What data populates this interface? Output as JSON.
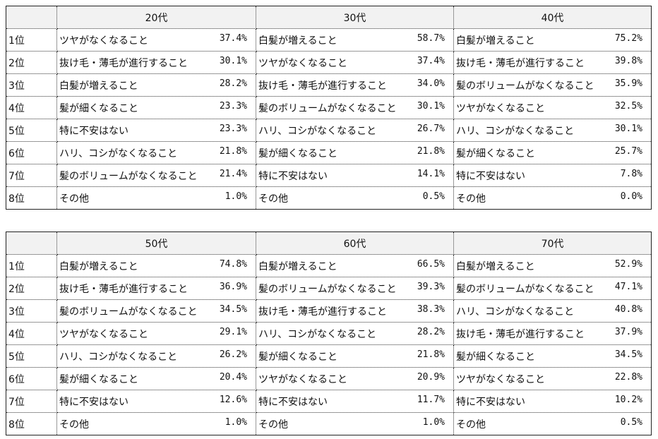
{
  "tables": [
    {
      "groups": [
        {
          "header": "20代",
          "rows": [
            [
              "ツヤがなくなること",
              "37.4%"
            ],
            [
              "抜け毛・薄毛が進行すること",
              "30.1%"
            ],
            [
              "白髪が増えること",
              "28.2%"
            ],
            [
              "髪が細くなること",
              "23.3%"
            ],
            [
              "特に不安はない",
              "23.3%"
            ],
            [
              "ハリ、コシがなくなること",
              "21.8%"
            ],
            [
              "髪のボリュームがなくなること",
              "21.4%"
            ],
            [
              "その他",
              "1.0%"
            ]
          ]
        },
        {
          "header": "30代",
          "rows": [
            [
              "白髪が増えること",
              "58.7%"
            ],
            [
              "ツヤがなくなること",
              "37.4%"
            ],
            [
              "抜け毛・薄毛が進行すること",
              "34.0%"
            ],
            [
              "髪のボリュームがなくなること",
              "30.1%"
            ],
            [
              "ハリ、コシがなくなること",
              "26.7%"
            ],
            [
              "髪が細くなること",
              "21.8%"
            ],
            [
              "特に不安はない",
              "14.1%"
            ],
            [
              "その他",
              "0.5%"
            ]
          ]
        },
        {
          "header": "40代",
          "rows": [
            [
              "白髪が増えること",
              "75.2%"
            ],
            [
              "抜け毛・薄毛が進行すること",
              "39.8%"
            ],
            [
              "髪のボリュームがなくなること",
              "35.9%"
            ],
            [
              "ツヤがなくなること",
              "32.5%"
            ],
            [
              "ハリ、コシがなくなること",
              "30.1%"
            ],
            [
              "髪が細くなること",
              "25.7%"
            ],
            [
              "特に不安はない",
              "7.8%"
            ],
            [
              "その他",
              "0.0%"
            ]
          ]
        }
      ]
    },
    {
      "groups": [
        {
          "header": "50代",
          "rows": [
            [
              "白髪が増えること",
              "74.8%"
            ],
            [
              "抜け毛・薄毛が進行すること",
              "36.9%"
            ],
            [
              "髪のボリュームがなくなること",
              "34.5%"
            ],
            [
              "ツヤがなくなること",
              "29.1%"
            ],
            [
              "ハリ、コシがなくなること",
              "26.2%"
            ],
            [
              "髪が細くなること",
              "20.4%"
            ],
            [
              "特に不安はない",
              "12.6%"
            ],
            [
              "その他",
              "1.0%"
            ]
          ]
        },
        {
          "header": "60代",
          "rows": [
            [
              "白髪が増えること",
              "66.5%"
            ],
            [
              "髪のボリュームがなくなること",
              "39.3%"
            ],
            [
              "抜け毛・薄毛が進行すること",
              "38.3%"
            ],
            [
              "ハリ、コシがなくなること",
              "28.2%"
            ],
            [
              "髪が細くなること",
              "21.8%"
            ],
            [
              "ツヤがなくなること",
              "20.9%"
            ],
            [
              "特に不安はない",
              "11.7%"
            ],
            [
              "その他",
              "1.0%"
            ]
          ]
        },
        {
          "header": "70代",
          "rows": [
            [
              "白髪が増えること",
              "52.9%"
            ],
            [
              "髪のボリュームがなくなること",
              "47.1%"
            ],
            [
              "ハリ、コシがなくなること",
              "40.8%"
            ],
            [
              "抜け毛・薄毛が進行すること",
              "37.9%"
            ],
            [
              "髪が細くなること",
              "34.5%"
            ],
            [
              "ツヤがなくなること",
              "22.8%"
            ],
            [
              "特に不安はない",
              "10.2%"
            ],
            [
              "その他",
              "0.5%"
            ]
          ]
        }
      ]
    }
  ],
  "ranks": [
    "1位",
    "2位",
    "3位",
    "4位",
    "5位",
    "6位",
    "7位",
    "8位"
  ]
}
